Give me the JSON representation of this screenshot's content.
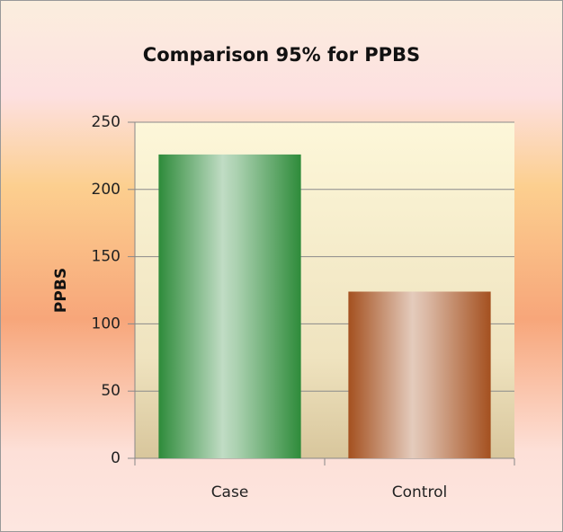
{
  "chart_data": {
    "type": "bar",
    "title": "Comparison 95% for PPBS",
    "y_label": "PPBS",
    "categories": [
      "Case",
      "Control"
    ],
    "values": [
      226,
      124
    ],
    "colors": [
      "#2e8b3a",
      "#a4501f"
    ],
    "ylim": [
      0,
      250
    ],
    "yticks": [
      0,
      50,
      100,
      150,
      200,
      250
    ],
    "grid": true
  }
}
